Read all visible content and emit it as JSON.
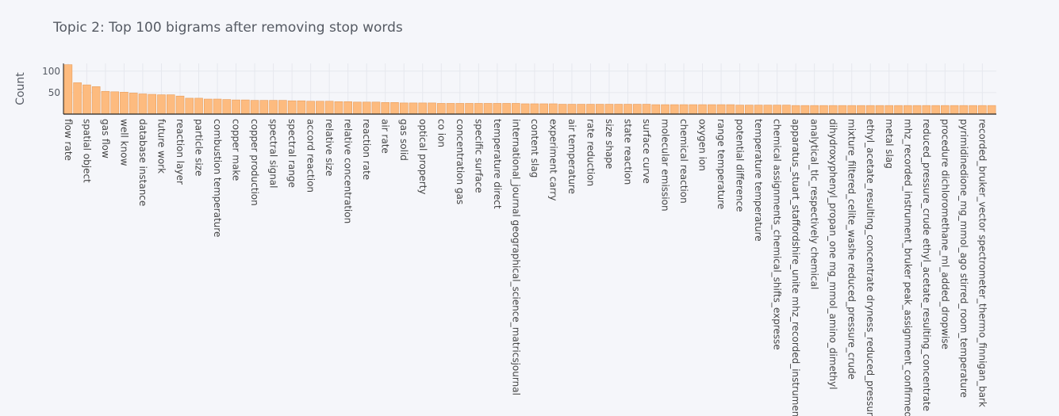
{
  "chart_data": {
    "type": "bar",
    "title": "Topic 2: Top 100 bigrams after removing stop words",
    "xlabel": "",
    "ylabel": "Count",
    "ylim": [
      0,
      118
    ],
    "yticks": [
      50,
      100
    ],
    "grid": true,
    "colors": {
      "bar_fill": "#fdbb7f",
      "bar_edge": "#e89d5c",
      "background": "#f5f6fa"
    },
    "categories": [
      "flow rate",
      "",
      "spatial object",
      "",
      "gas flow",
      "",
      "well know",
      "",
      "database instance",
      "",
      "future work",
      "",
      "reaction layer",
      "",
      "particle size",
      "",
      "combustion temperature",
      "",
      "copper make",
      "",
      "copper production",
      "",
      "spectral signal",
      "",
      "spectral range",
      "",
      "accord reaction",
      "",
      "relative size",
      "",
      "relative concentration",
      "",
      "reaction rate",
      "",
      "air rate",
      "",
      "gas solid",
      "",
      "optical property",
      "",
      "co ion",
      "",
      "concentration gas",
      "",
      "specific surface",
      "",
      "temperature direct",
      "",
      "international_journal geographical_science_matricsjournal",
      "",
      "content slag",
      "",
      "experiment carry",
      "",
      "air temperature",
      "",
      "rate reduction",
      "",
      "size shape",
      "",
      "state reaction",
      "",
      "surface curve",
      "",
      "molecular emission",
      "",
      "chemical reaction",
      "",
      "oxygen ion",
      "",
      "range temperature",
      "",
      "potential difference",
      "",
      "temperature temperature",
      "",
      "chemical assignments_chemical_shifts_expresse",
      "",
      "apparatus_stuart_staffordshire_unite mhz_recorded_instrument",
      "",
      "analytical_tlc_respectively chemical",
      "",
      "dihydroxyphenyl_propan_one mg_mmol_amino_dimethyl",
      "",
      "mixture_filtered_celite_washe reduced_pressure_crude",
      "",
      "ethyl_acetate_resulting_concentrate dryness_reduced_pressure",
      "",
      "metal slag",
      "",
      "mhz_recorded_instrument_bruker peak_assignment_confirmed",
      "",
      "reduced_pressure_crude ethyl_acetate_resulting_concentrate",
      "",
      "procedure dichloromethane_ml_added_dropwise",
      "",
      "pyrimidinedione_mg_mmol_ago stirred_room_temperature",
      "",
      "recorded_bruker_vector spectrometer_thermo_finnigan_bark",
      ""
    ],
    "values": [
      115,
      73,
      68,
      64,
      53,
      52,
      51,
      49,
      47,
      46,
      45,
      45,
      42,
      37,
      37,
      35,
      35,
      34,
      33,
      33,
      32,
      32,
      32,
      32,
      31,
      31,
      30,
      30,
      30,
      29,
      29,
      28,
      28,
      28,
      27,
      27,
      26,
      26,
      26,
      26,
      25,
      25,
      25,
      25,
      25,
      25,
      25,
      25,
      25,
      24,
      24,
      24,
      24,
      23,
      23,
      23,
      23,
      23,
      23,
      23,
      23,
      23,
      23,
      22,
      22,
      22,
      22,
      22,
      22,
      22,
      22,
      22,
      21,
      21,
      21,
      21,
      21,
      21,
      20,
      20,
      20,
      20,
      20,
      20,
      20,
      20,
      20,
      20,
      20,
      20,
      20,
      20,
      20,
      20,
      20,
      20,
      20,
      20,
      20,
      20
    ]
  }
}
